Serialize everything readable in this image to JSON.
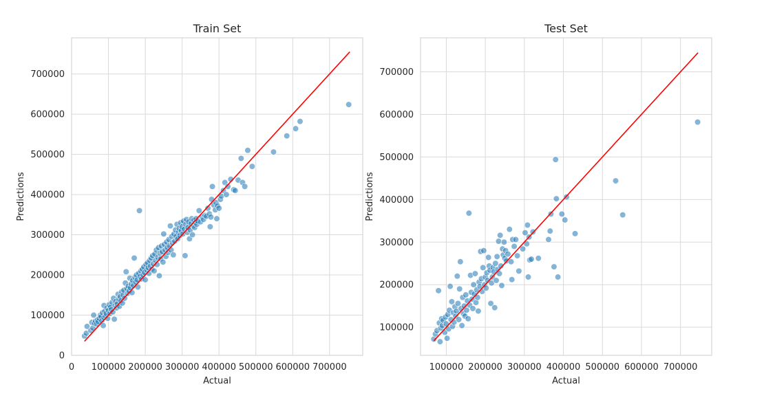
{
  "chart_data": [
    {
      "type": "scatter",
      "title": "Train Set",
      "xlabel": "Actual",
      "ylabel": "Predictions",
      "xlim": [
        0,
        790000
      ],
      "ylim": [
        0,
        790000
      ],
      "xticks": [
        0,
        100000,
        200000,
        300000,
        400000,
        500000,
        600000,
        700000
      ],
      "xtick_labels": [
        "0",
        "100000",
        "200000",
        "300000",
        "400000",
        "500000",
        "600000",
        "700000"
      ],
      "yticks": [
        0,
        100000,
        200000,
        300000,
        400000,
        500000,
        600000,
        700000
      ],
      "ytick_labels": [
        "0",
        "100000",
        "200000",
        "300000",
        "400000",
        "500000",
        "600000",
        "700000"
      ],
      "grid": true,
      "point_color": "#1f77b4",
      "reference_line": {
        "color": "#ff0000",
        "x": [
          35000,
          755000
        ],
        "y": [
          35000,
          755000
        ]
      },
      "points": [
        [
          35000,
          48000
        ],
        [
          40000,
          55000
        ],
        [
          42000,
          72000
        ],
        [
          52000,
          62000
        ],
        [
          55000,
          82000
        ],
        [
          58000,
          68000
        ],
        [
          60000,
          100000
        ],
        [
          62000,
          80000
        ],
        [
          65000,
          85000
        ],
        [
          68000,
          78000
        ],
        [
          70000,
          88000
        ],
        [
          72000,
          84000
        ],
        [
          75000,
          92000
        ],
        [
          78000,
          100000
        ],
        [
          80000,
          96000
        ],
        [
          82000,
          86000
        ],
        [
          84000,
          106000
        ],
        [
          86000,
          74000
        ],
        [
          88000,
          94000
        ],
        [
          88000,
          124000
        ],
        [
          90000,
          110000
        ],
        [
          92000,
          98000
        ],
        [
          94000,
          104000
        ],
        [
          96000,
          118000
        ],
        [
          98000,
          92000
        ],
        [
          100000,
          112000
        ],
        [
          102000,
          126000
        ],
        [
          104000,
          104000
        ],
        [
          106000,
          120000
        ],
        [
          108000,
          114000
        ],
        [
          110000,
          132000
        ],
        [
          112000,
          108000
        ],
        [
          114000,
          142000
        ],
        [
          116000,
          90000
        ],
        [
          118000,
          124000
        ],
        [
          120000,
          134000
        ],
        [
          122000,
          118000
        ],
        [
          124000,
          128000
        ],
        [
          126000,
          152000
        ],
        [
          128000,
          140000
        ],
        [
          130000,
          122000
        ],
        [
          132000,
          146000
        ],
        [
          134000,
          136000
        ],
        [
          136000,
          158000
        ],
        [
          138000,
          130000
        ],
        [
          140000,
          150000
        ],
        [
          142000,
          162000
        ],
        [
          144000,
          142000
        ],
        [
          146000,
          180000
        ],
        [
          148000,
          208000
        ],
        [
          150000,
          166000
        ],
        [
          152000,
          154000
        ],
        [
          154000,
          172000
        ],
        [
          156000,
          160000
        ],
        [
          158000,
          192000
        ],
        [
          160000,
          168000
        ],
        [
          162000,
          178000
        ],
        [
          164000,
          156000
        ],
        [
          166000,
          186000
        ],
        [
          168000,
          174000
        ],
        [
          170000,
          242000
        ],
        [
          172000,
          194000
        ],
        [
          174000,
          182000
        ],
        [
          176000,
          200000
        ],
        [
          178000,
          188000
        ],
        [
          180000,
          170000
        ],
        [
          182000,
          204000
        ],
        [
          184000,
          360000
        ],
        [
          186000,
          196000
        ],
        [
          188000,
          210000
        ],
        [
          190000,
          190000
        ],
        [
          192000,
          214000
        ],
        [
          194000,
          200000
        ],
        [
          196000,
          220000
        ],
        [
          198000,
          206000
        ],
        [
          200000,
          188000
        ],
        [
          202000,
          226000
        ],
        [
          204000,
          212000
        ],
        [
          206000,
          230000
        ],
        [
          208000,
          218000
        ],
        [
          210000,
          204000
        ],
        [
          212000,
          236000
        ],
        [
          214000,
          222000
        ],
        [
          216000,
          242000
        ],
        [
          218000,
          214000
        ],
        [
          220000,
          248000
        ],
        [
          222000,
          228000
        ],
        [
          224000,
          210000
        ],
        [
          226000,
          252000
        ],
        [
          228000,
          236000
        ],
        [
          230000,
          262000
        ],
        [
          232000,
          226000
        ],
        [
          234000,
          244000
        ],
        [
          236000,
          268000
        ],
        [
          238000,
          198000
        ],
        [
          240000,
          254000
        ],
        [
          242000,
          240000
        ],
        [
          244000,
          272000
        ],
        [
          246000,
          258000
        ],
        [
          248000,
          232000
        ],
        [
          250000,
          302000
        ],
        [
          252000,
          276000
        ],
        [
          254000,
          262000
        ],
        [
          256000,
          246000
        ],
        [
          258000,
          282000
        ],
        [
          260000,
          268000
        ],
        [
          262000,
          256000
        ],
        [
          264000,
          288000
        ],
        [
          266000,
          272000
        ],
        [
          268000,
          322000
        ],
        [
          270000,
          262000
        ],
        [
          272000,
          296000
        ],
        [
          274000,
          280000
        ],
        [
          276000,
          250000
        ],
        [
          278000,
          302000
        ],
        [
          280000,
          284000
        ],
        [
          282000,
          312000
        ],
        [
          284000,
          296000
        ],
        [
          286000,
          326000
        ],
        [
          288000,
          290000
        ],
        [
          290000,
          306000
        ],
        [
          292000,
          316000
        ],
        [
          294000,
          298000
        ],
        [
          296000,
          330000
        ],
        [
          298000,
          310000
        ],
        [
          300000,
          320000
        ],
        [
          302000,
          302000
        ],
        [
          304000,
          334000
        ],
        [
          306000,
          314000
        ],
        [
          308000,
          248000
        ],
        [
          310000,
          326000
        ],
        [
          312000,
          338000
        ],
        [
          314000,
          306000
        ],
        [
          316000,
          318000
        ],
        [
          318000,
          332000
        ],
        [
          320000,
          290000
        ],
        [
          322000,
          312000
        ],
        [
          324000,
          328000
        ],
        [
          326000,
          340000
        ],
        [
          328000,
          300000
        ],
        [
          330000,
          322000
        ],
        [
          332000,
          336000
        ],
        [
          334000,
          318000
        ],
        [
          336000,
          330000
        ],
        [
          338000,
          340000
        ],
        [
          340000,
          326000
        ],
        [
          342000,
          334000
        ],
        [
          346000,
          360000
        ],
        [
          350000,
          332000
        ],
        [
          354000,
          344000
        ],
        [
          358000,
          338000
        ],
        [
          362000,
          348000
        ],
        [
          366000,
          346000
        ],
        [
          370000,
          366000
        ],
        [
          374000,
          352000
        ],
        [
          376000,
          320000
        ],
        [
          378000,
          344000
        ],
        [
          380000,
          388000
        ],
        [
          382000,
          420000
        ],
        [
          386000,
          374000
        ],
        [
          390000,
          362000
        ],
        [
          392000,
          380000
        ],
        [
          394000,
          340000
        ],
        [
          396000,
          372000
        ],
        [
          400000,
          366000
        ],
        [
          404000,
          388000
        ],
        [
          406000,
          396000
        ],
        [
          412000,
          410000
        ],
        [
          416000,
          430000
        ],
        [
          420000,
          400000
        ],
        [
          424000,
          420000
        ],
        [
          432000,
          438000
        ],
        [
          440000,
          412000
        ],
        [
          444000,
          410000
        ],
        [
          452000,
          436000
        ],
        [
          460000,
          490000
        ],
        [
          464000,
          430000
        ],
        [
          470000,
          420000
        ],
        [
          478000,
          510000
        ],
        [
          490000,
          470000
        ],
        [
          548000,
          506000
        ],
        [
          584000,
          546000
        ],
        [
          608000,
          564000
        ],
        [
          620000,
          582000
        ],
        [
          752000,
          624000
        ]
      ]
    },
    {
      "type": "scatter",
      "title": "Test Set",
      "xlabel": "Actual",
      "ylabel": "Predictions",
      "xlim": [
        34000,
        780000
      ],
      "ylim": [
        34000,
        780000
      ],
      "xticks": [
        100000,
        200000,
        300000,
        400000,
        500000,
        600000,
        700000
      ],
      "xtick_labels": [
        "100000",
        "200000",
        "300000",
        "400000",
        "500000",
        "600000",
        "700000"
      ],
      "yticks": [
        100000,
        200000,
        300000,
        400000,
        500000,
        600000,
        700000
      ],
      "ytick_labels": [
        "100000",
        "200000",
        "300000",
        "400000",
        "500000",
        "600000",
        "700000"
      ],
      "grid": true,
      "point_color": "#1f77b4",
      "reference_line": {
        "color": "#ff0000",
        "x": [
          68000,
          745000
        ],
        "y": [
          68000,
          745000
        ]
      },
      "points": [
        [
          68000,
          72000
        ],
        [
          72000,
          84000
        ],
        [
          76000,
          92000
        ],
        [
          80000,
          186000
        ],
        [
          82000,
          110000
        ],
        [
          84000,
          66000
        ],
        [
          86000,
          98000
        ],
        [
          88000,
          120000
        ],
        [
          90000,
          104000
        ],
        [
          92000,
          116000
        ],
        [
          96000,
          88000
        ],
        [
          98000,
          124000
        ],
        [
          100000,
          108000
        ],
        [
          102000,
          74000
        ],
        [
          104000,
          130000
        ],
        [
          106000,
          96000
        ],
        [
          108000,
          140000
        ],
        [
          110000,
          196000
        ],
        [
          112000,
          118000
        ],
        [
          114000,
          160000
        ],
        [
          116000,
          102000
        ],
        [
          118000,
          134000
        ],
        [
          120000,
          112000
        ],
        [
          122000,
          148000
        ],
        [
          124000,
          126000
        ],
        [
          126000,
          138000
        ],
        [
          128000,
          220000
        ],
        [
          130000,
          156000
        ],
        [
          132000,
          118000
        ],
        [
          134000,
          190000
        ],
        [
          136000,
          254000
        ],
        [
          138000,
          144000
        ],
        [
          140000,
          104000
        ],
        [
          142000,
          170000
        ],
        [
          144000,
          132000
        ],
        [
          146000,
          150000
        ],
        [
          148000,
          126000
        ],
        [
          150000,
          176000
        ],
        [
          152000,
          140000
        ],
        [
          154000,
          162000
        ],
        [
          156000,
          120000
        ],
        [
          158000,
          368000
        ],
        [
          160000,
          152000
        ],
        [
          162000,
          222000
        ],
        [
          164000,
          182000
        ],
        [
          166000,
          166000
        ],
        [
          168000,
          144000
        ],
        [
          170000,
          200000
        ],
        [
          172000,
          178000
        ],
        [
          174000,
          226000
        ],
        [
          176000,
          158000
        ],
        [
          178000,
          188000
        ],
        [
          180000,
          170000
        ],
        [
          182000,
          138000
        ],
        [
          184000,
          206000
        ],
        [
          186000,
          196000
        ],
        [
          188000,
          278000
        ],
        [
          190000,
          214000
        ],
        [
          192000,
          184000
        ],
        [
          194000,
          240000
        ],
        [
          196000,
          280000
        ],
        [
          198000,
          200000
        ],
        [
          200000,
          218000
        ],
        [
          202000,
          192000
        ],
        [
          204000,
          228000
        ],
        [
          206000,
          210000
        ],
        [
          208000,
          264000
        ],
        [
          210000,
          244000
        ],
        [
          212000,
          234000
        ],
        [
          214000,
          156000
        ],
        [
          216000,
          204000
        ],
        [
          218000,
          218000
        ],
        [
          220000,
          240000
        ],
        [
          222000,
          230000
        ],
        [
          224000,
          146000
        ],
        [
          226000,
          250000
        ],
        [
          228000,
          210000
        ],
        [
          230000,
          266000
        ],
        [
          232000,
          236000
        ],
        [
          234000,
          302000
        ],
        [
          236000,
          226000
        ],
        [
          238000,
          316000
        ],
        [
          240000,
          244000
        ],
        [
          242000,
          198000
        ],
        [
          244000,
          284000
        ],
        [
          246000,
          270000
        ],
        [
          248000,
          300000
        ],
        [
          250000,
          262000
        ],
        [
          252000,
          280000
        ],
        [
          254000,
          256000
        ],
        [
          258000,
          272000
        ],
        [
          262000,
          330000
        ],
        [
          266000,
          254000
        ],
        [
          268000,
          212000
        ],
        [
          270000,
          306000
        ],
        [
          274000,
          290000
        ],
        [
          278000,
          306000
        ],
        [
          282000,
          268000
        ],
        [
          286000,
          232000
        ],
        [
          296000,
          284000
        ],
        [
          302000,
          322000
        ],
        [
          306000,
          296000
        ],
        [
          308000,
          340000
        ],
        [
          310000,
          218000
        ],
        [
          312000,
          312000
        ],
        [
          314000,
          258000
        ],
        [
          318000,
          260000
        ],
        [
          322000,
          324000
        ],
        [
          336000,
          262000
        ],
        [
          362000,
          306000
        ],
        [
          366000,
          326000
        ],
        [
          368000,
          366000
        ],
        [
          376000,
          242000
        ],
        [
          380000,
          494000
        ],
        [
          382000,
          402000
        ],
        [
          386000,
          218000
        ],
        [
          396000,
          366000
        ],
        [
          404000,
          352000
        ],
        [
          408000,
          406000
        ],
        [
          430000,
          320000
        ],
        [
          534000,
          444000
        ],
        [
          552000,
          364000
        ],
        [
          744000,
          582000
        ]
      ]
    }
  ]
}
